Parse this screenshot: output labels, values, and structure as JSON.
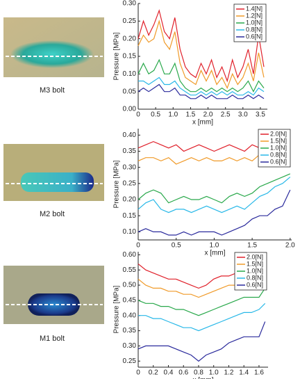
{
  "chart_data": [
    {
      "type": "line",
      "caption": "M3 bolt",
      "ylabel": "Pressure [MPa]",
      "xlabel": "x [mm]",
      "legend": "upper right",
      "xlim": [
        0,
        3.7
      ],
      "ylim": [
        0,
        0.3
      ],
      "xticks": [
        0,
        0.5,
        {
          "value": 1,
          "label": "1.0"
        },
        1.5,
        {
          "value": 2,
          "label": "2.0"
        },
        2.5,
        {
          "value": 3,
          "label": "3.0"
        },
        3.5
      ],
      "yticks": [
        {
          "value": 0,
          "label": "0.00"
        },
        0.05,
        {
          "value": 0.1,
          "label": "0.10"
        },
        0.15,
        {
          "value": 0.2,
          "label": "0.20"
        },
        0.25,
        {
          "value": 0.3,
          "label": "0.30"
        }
      ],
      "x": [
        0,
        0.15,
        0.3,
        0.45,
        0.6,
        0.75,
        0.9,
        1.05,
        1.2,
        1.35,
        1.5,
        1.65,
        1.8,
        1.95,
        2.1,
        2.25,
        2.4,
        2.55,
        2.7,
        2.85,
        3.0,
        3.15,
        3.3,
        3.45,
        3.6
      ],
      "series": [
        {
          "name": "1.4[N]",
          "color": "#e0202a",
          "values": [
            0.2,
            0.25,
            0.21,
            0.24,
            0.28,
            0.22,
            0.2,
            0.26,
            0.17,
            0.12,
            0.1,
            0.09,
            0.13,
            0.1,
            0.14,
            0.09,
            0.12,
            0.08,
            0.14,
            0.09,
            0.12,
            0.17,
            0.1,
            0.21,
            0.12
          ]
        },
        {
          "name": "1.2[N]",
          "color": "#f09a28",
          "values": [
            0.18,
            0.21,
            0.19,
            0.2,
            0.25,
            0.19,
            0.17,
            0.22,
            0.13,
            0.09,
            0.08,
            0.07,
            0.11,
            0.08,
            0.11,
            0.07,
            0.09,
            0.06,
            0.1,
            0.07,
            0.09,
            0.13,
            0.08,
            0.16,
            0.09
          ]
        },
        {
          "name": "1.0[N]",
          "color": "#28a84a",
          "values": [
            0.1,
            0.13,
            0.1,
            0.11,
            0.14,
            0.1,
            0.1,
            0.13,
            0.08,
            0.06,
            0.05,
            0.05,
            0.06,
            0.05,
            0.06,
            0.05,
            0.06,
            0.05,
            0.06,
            0.05,
            0.06,
            0.08,
            0.05,
            0.08,
            0.06
          ]
        },
        {
          "name": "0.8[N]",
          "color": "#28b8e8",
          "values": [
            0.08,
            0.08,
            0.07,
            0.08,
            0.09,
            0.07,
            0.07,
            0.08,
            0.06,
            0.05,
            0.04,
            0.04,
            0.05,
            0.04,
            0.05,
            0.04,
            0.05,
            0.04,
            0.05,
            0.04,
            0.04,
            0.05,
            0.04,
            0.06,
            0.05
          ]
        },
        {
          "name": "0.6[N]",
          "color": "#2a2a9c",
          "values": [
            0.05,
            0.06,
            0.05,
            0.06,
            0.07,
            0.05,
            0.05,
            0.06,
            0.04,
            0.04,
            0.03,
            0.03,
            0.04,
            0.03,
            0.04,
            0.03,
            0.03,
            0.03,
            0.04,
            0.03,
            0.03,
            0.04,
            0.03,
            0.04,
            0.03
          ]
        }
      ]
    },
    {
      "type": "line",
      "caption": "M2 bolt",
      "ylabel": "Pressure [MPa]",
      "xlabel": "x [mm]",
      "legend": "upper right",
      "xlim": [
        0,
        2.02
      ],
      "ylim": [
        0.075,
        0.42
      ],
      "xticks": [
        0,
        0.5,
        {
          "value": 1,
          "label": "1.0"
        },
        1.5,
        {
          "value": 2,
          "label": "2.0"
        }
      ],
      "yticks": [
        {
          "value": 0.1,
          "label": "0.10"
        },
        0.15,
        {
          "value": 0.2,
          "label": "0.20"
        },
        0.25,
        {
          "value": 0.3,
          "label": "0.30"
        },
        0.35,
        {
          "value": 0.4,
          "label": "0.40"
        }
      ],
      "x": [
        0,
        0.1,
        0.2,
        0.3,
        0.4,
        0.5,
        0.6,
        0.7,
        0.8,
        0.9,
        1.0,
        1.1,
        1.2,
        1.3,
        1.4,
        1.5,
        1.6,
        1.7,
        1.8,
        1.9,
        2.0
      ],
      "series": [
        {
          "name": "2.0[N]",
          "color": "#e0202a",
          "values": [
            0.36,
            0.37,
            0.38,
            0.37,
            0.36,
            0.37,
            0.35,
            0.36,
            0.37,
            0.36,
            0.35,
            0.36,
            0.37,
            0.36,
            0.35,
            0.37,
            0.36,
            0.37,
            0.38,
            0.38,
            0.37
          ]
        },
        {
          "name": "1.5[N]",
          "color": "#f09a28",
          "values": [
            0.32,
            0.33,
            0.33,
            0.32,
            0.33,
            0.31,
            0.32,
            0.33,
            0.32,
            0.33,
            0.32,
            0.32,
            0.33,
            0.32,
            0.33,
            0.32,
            0.34,
            0.34,
            0.35,
            0.34,
            0.35
          ]
        },
        {
          "name": "1.0[N]",
          "color": "#28a84a",
          "values": [
            0.2,
            0.22,
            0.23,
            0.22,
            0.19,
            0.2,
            0.21,
            0.2,
            0.2,
            0.21,
            0.2,
            0.19,
            0.21,
            0.22,
            0.21,
            0.22,
            0.24,
            0.25,
            0.26,
            0.27,
            0.28
          ]
        },
        {
          "name": "0.8[N]",
          "color": "#28b8e8",
          "values": [
            0.17,
            0.19,
            0.2,
            0.17,
            0.16,
            0.17,
            0.17,
            0.16,
            0.17,
            0.18,
            0.17,
            0.16,
            0.17,
            0.18,
            0.17,
            0.19,
            0.21,
            0.22,
            0.24,
            0.25,
            0.27
          ]
        },
        {
          "name": "0.6[N]",
          "color": "#2a2a9c",
          "values": [
            0.1,
            0.11,
            0.1,
            0.1,
            0.09,
            0.09,
            0.1,
            0.09,
            0.1,
            0.1,
            0.1,
            0.09,
            0.1,
            0.11,
            0.12,
            0.14,
            0.15,
            0.15,
            0.17,
            0.18,
            0.23
          ]
        }
      ]
    },
    {
      "type": "line",
      "caption": "M1 bolt",
      "ylabel": "Pressure [MPa]",
      "xlabel": "x [mm]",
      "legend": "upper right",
      "xlim": [
        0,
        1.72
      ],
      "ylim": [
        0.23,
        0.61
      ],
      "xticks": [
        0,
        0.2,
        0.4,
        0.6,
        0.8,
        {
          "value": 1,
          "label": "1.0"
        },
        1.2,
        1.4,
        1.6
      ],
      "yticks": [
        0.25,
        {
          "value": 0.3,
          "label": "0.30"
        },
        0.35,
        {
          "value": 0.4,
          "label": "0.40"
        },
        0.45,
        {
          "value": 0.5,
          "label": "0.50"
        },
        0.55,
        {
          "value": 0.6,
          "label": "0.60"
        }
      ],
      "x": [
        0,
        0.1,
        0.2,
        0.3,
        0.4,
        0.5,
        0.6,
        0.7,
        0.8,
        0.9,
        1.0,
        1.1,
        1.2,
        1.3,
        1.4,
        1.5,
        1.6,
        1.68
      ],
      "series": [
        {
          "name": "2.0[N]",
          "color": "#e0202a",
          "values": [
            0.57,
            0.55,
            0.54,
            0.53,
            0.52,
            0.52,
            0.51,
            0.5,
            0.49,
            0.5,
            0.52,
            0.53,
            0.53,
            0.54,
            0.54,
            0.54,
            0.55,
            0.55
          ]
        },
        {
          "name": "1.5[N]",
          "color": "#f09a28",
          "values": [
            0.52,
            0.5,
            0.49,
            0.49,
            0.48,
            0.48,
            0.47,
            0.47,
            0.46,
            0.47,
            0.48,
            0.49,
            0.5,
            0.5,
            0.51,
            0.51,
            0.52,
            0.52
          ]
        },
        {
          "name": "1.0[N]",
          "color": "#28a84a",
          "values": [
            0.45,
            0.44,
            0.44,
            0.43,
            0.43,
            0.42,
            0.42,
            0.41,
            0.4,
            0.41,
            0.42,
            0.43,
            0.44,
            0.45,
            0.46,
            0.46,
            0.46,
            0.49
          ]
        },
        {
          "name": "0.8[N]",
          "color": "#28b8e8",
          "values": [
            0.4,
            0.4,
            0.39,
            0.39,
            0.38,
            0.37,
            0.36,
            0.36,
            0.35,
            0.36,
            0.37,
            0.38,
            0.39,
            0.4,
            0.41,
            0.41,
            0.42,
            0.44
          ]
        },
        {
          "name": "0.6[N]",
          "color": "#2a2a9c",
          "values": [
            0.29,
            0.3,
            0.3,
            0.3,
            0.3,
            0.29,
            0.28,
            0.27,
            0.25,
            0.27,
            0.28,
            0.29,
            0.31,
            0.32,
            0.33,
            0.33,
            0.33,
            0.38
          ]
        }
      ]
    }
  ]
}
